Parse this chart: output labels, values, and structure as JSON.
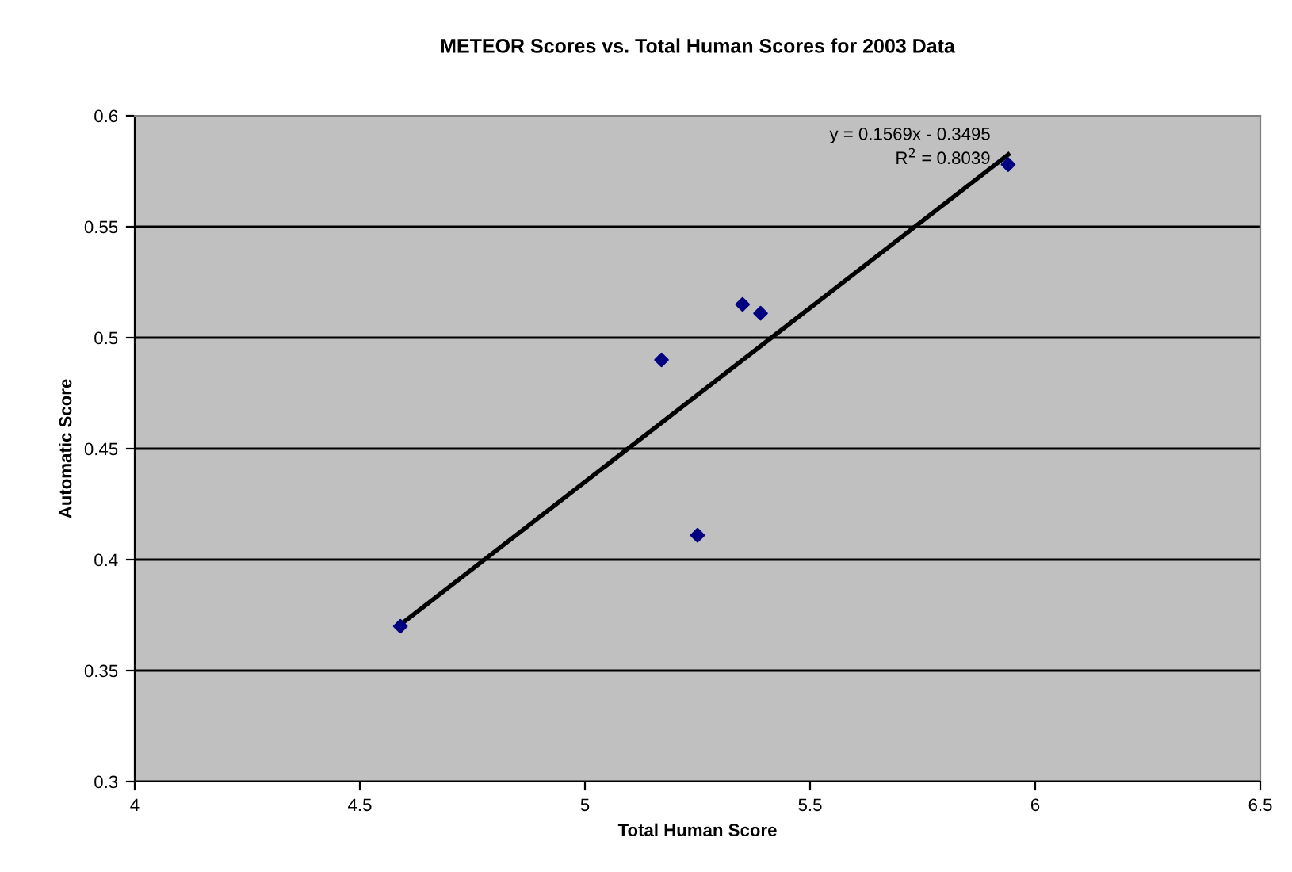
{
  "chart_data": {
    "type": "scatter",
    "title": "METEOR Scores vs. Total Human Scores for 2003 Data",
    "xlabel": "Total Human Score",
    "ylabel": "Automatic Score",
    "series": [
      {
        "color": "#000080",
        "x": [
          4.59,
          5.17,
          5.25,
          5.35,
          5.39,
          5.94
        ],
        "values": [
          0.37,
          0.49,
          0.411,
          0.515,
          0.511,
          0.578
        ],
        "marker": "diamond"
      },
      {
        "type": "line",
        "color": "#000000",
        "x": [
          4.59,
          5.94
        ],
        "values": [
          0.3707,
          0.5825
        ],
        "marker": "none"
      }
    ],
    "annotations": [
      "y = 0.1569x - 0.3495",
      "R$^{2}$ = 0.8039"
    ],
    "xlim": [
      4,
      6.5
    ],
    "xticks": [
      4,
      4.5,
      5,
      5.5,
      6,
      6.5
    ],
    "ylim": [
      0.3,
      0.6
    ],
    "yticks": [
      0.3,
      0.35,
      0.4,
      0.45,
      0.5,
      0.55,
      0.6
    ],
    "grid": "y",
    "legend": false
  }
}
